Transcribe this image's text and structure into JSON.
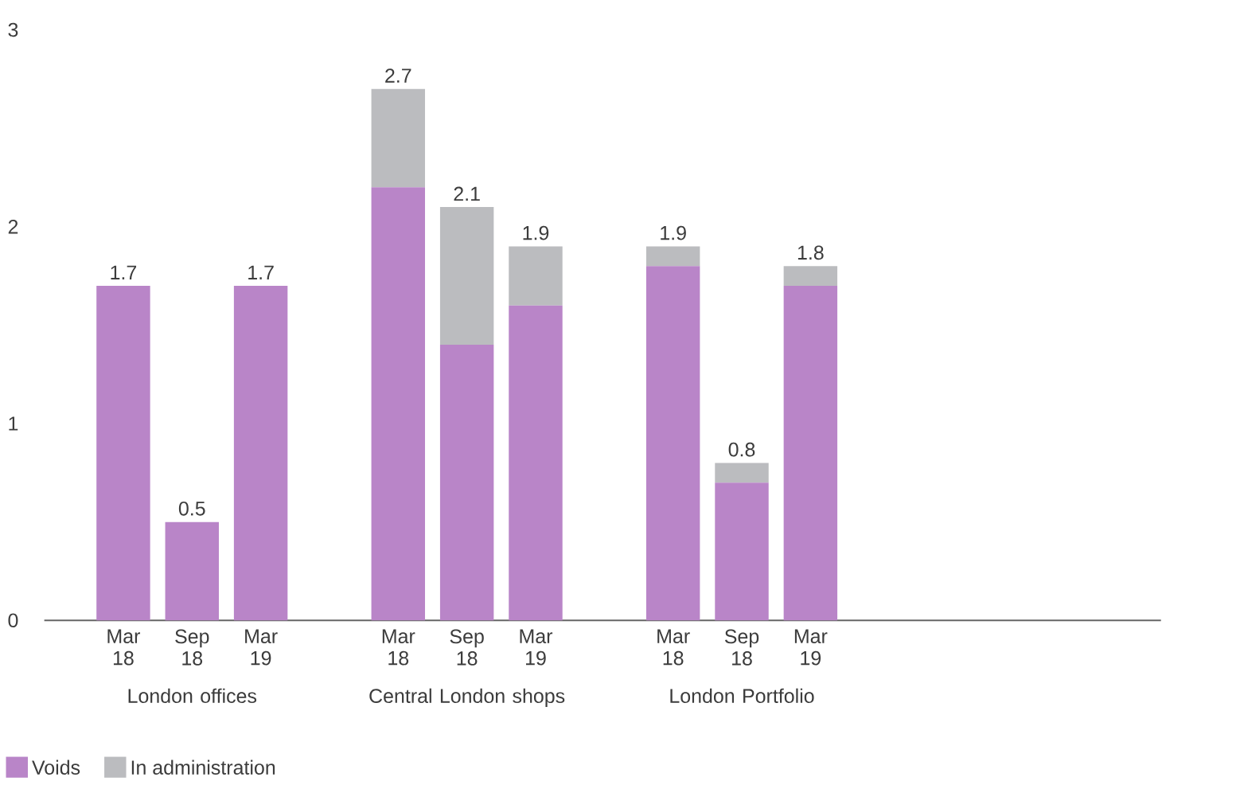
{
  "chart_data": {
    "type": "bar",
    "stacked": true,
    "categories": [
      "Mar 18",
      "Sep 18",
      "Mar 19",
      null,
      "Mar 18",
      "Sep 18",
      "Mar 19",
      null,
      "Mar 18",
      "Sep 18",
      "Mar 19"
    ],
    "series": [
      {
        "name": "Voids",
        "color": "#b985c8",
        "values": [
          1.7,
          0.5,
          1.7,
          null,
          2.2,
          1.4,
          1.6,
          null,
          1.8,
          0.7,
          1.7
        ]
      },
      {
        "name": "In administration",
        "color": "#bbbcbf",
        "values": [
          null,
          null,
          null,
          null,
          0.5,
          0.7,
          0.3,
          null,
          0.1,
          0.1,
          0.1
        ]
      }
    ],
    "totals": [
      "1.7",
      "0.5",
      "1.7",
      null,
      "2.7",
      "2.1",
      "1.9",
      null,
      "1.9",
      "0.8",
      "1.8"
    ],
    "annotations": [
      "London offices",
      "Central London shops",
      "London Portfolio"
    ],
    "ylim": [
      0,
      3
    ],
    "yticks": [
      0,
      1,
      2,
      3
    ],
    "grid": false,
    "legend": "bottom left"
  }
}
